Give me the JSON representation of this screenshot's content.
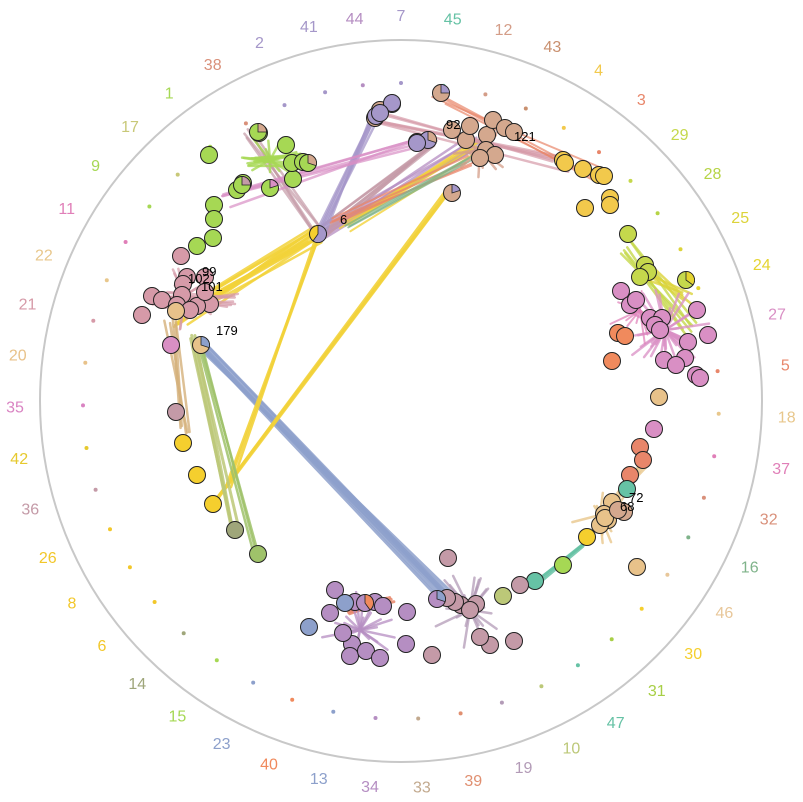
{
  "circle_labels": [
    {
      "text": "7",
      "color": "#a597c9",
      "angle": 0
    },
    {
      "text": "45",
      "color": "#66c2a5",
      "angle": 7.7
    },
    {
      "text": "12",
      "color": "#d49d88",
      "angle": 15.4
    },
    {
      "text": "43",
      "color": "#c9906f",
      "angle": 23.1
    },
    {
      "text": "4",
      "color": "#f2c94c",
      "angle": 30.8
    },
    {
      "text": "3",
      "color": "#e8866a",
      "angle": 38.5
    },
    {
      "text": "29",
      "color": "#c5d84c",
      "angle": 46.2
    },
    {
      "text": "28",
      "color": "#b6d446",
      "angle": 53.8
    },
    {
      "text": "25",
      "color": "#dcd33a",
      "angle": 61.5
    },
    {
      "text": "24",
      "color": "#e5d430",
      "angle": 69.2
    },
    {
      "text": "27",
      "color": "#d98fc4",
      "angle": 76.9
    },
    {
      "text": "5",
      "color": "#e8866a",
      "angle": 84.6
    },
    {
      "text": "18",
      "color": "#e8c78c",
      "angle": 92.3
    },
    {
      "text": "37",
      "color": "#e07fb8",
      "angle": 100
    },
    {
      "text": "32",
      "color": "#d9907a",
      "angle": 107.7
    },
    {
      "text": "16",
      "color": "#7fb38a",
      "angle": 115.4
    },
    {
      "text": "46",
      "color": "#e8c79a",
      "angle": 123.1
    },
    {
      "text": "30",
      "color": "#f5cf2e",
      "angle": 130.8
    },
    {
      "text": "31",
      "color": "#a8cf46",
      "angle": 138.5
    },
    {
      "text": "47",
      "color": "#66c2a5",
      "angle": 146.2
    },
    {
      "text": "10",
      "color": "#bcc878",
      "angle": 153.8
    },
    {
      "text": "19",
      "color": "#b39bb7",
      "angle": 161.5
    },
    {
      "text": "39",
      "color": "#e08f70",
      "angle": 169.2
    },
    {
      "text": "33",
      "color": "#c2a98e",
      "angle": 176.9
    },
    {
      "text": "34",
      "color": "#b58ec2",
      "angle": 184.6
    },
    {
      "text": "13",
      "color": "#8da0cb",
      "angle": 192.3
    },
    {
      "text": "40",
      "color": "#f08a5d",
      "angle": 200
    },
    {
      "text": "23",
      "color": "#8da0cb",
      "angle": 207.7
    },
    {
      "text": "15",
      "color": "#a6d854",
      "angle": 215.4
    },
    {
      "text": "14",
      "color": "#9fa67a",
      "angle": 223.1
    },
    {
      "text": "6",
      "color": "#f2c72a",
      "angle": 230.8
    },
    {
      "text": "8",
      "color": "#f2c72a",
      "angle": 238.5
    },
    {
      "text": "26",
      "color": "#f2c72a",
      "angle": 246.2
    },
    {
      "text": "36",
      "color": "#c49aa7",
      "angle": 253.8
    },
    {
      "text": "42",
      "color": "#e6c92e",
      "angle": 261.5
    },
    {
      "text": "35",
      "color": "#d983c2",
      "angle": 269.2
    },
    {
      "text": "20",
      "color": "#e8c28a",
      "angle": 276.9
    },
    {
      "text": "21",
      "color": "#d69aa8",
      "angle": 284.6
    },
    {
      "text": "22",
      "color": "#e8c78c",
      "angle": 292.3
    },
    {
      "text": "11",
      "color": "#e07fb8",
      "angle": 300
    },
    {
      "text": "9",
      "color": "#a6d854",
      "angle": 307.7
    },
    {
      "text": "17",
      "color": "#c8c878",
      "angle": 315.4
    },
    {
      "text": "1",
      "color": "#a6d854",
      "angle": 323.1
    },
    {
      "text": "38",
      "color": "#d9907a",
      "angle": 330.8
    },
    {
      "text": "2",
      "color": "#a597c9",
      "angle": 338.5
    },
    {
      "text": "41",
      "color": "#a597c9",
      "angle": 346.2
    },
    {
      "text": "44",
      "color": "#b58ec2",
      "angle": 353.1
    }
  ],
  "node_labels": [
    "92",
    "121",
    "6",
    "99",
    "102",
    "101",
    "179",
    "72",
    "68"
  ]
}
